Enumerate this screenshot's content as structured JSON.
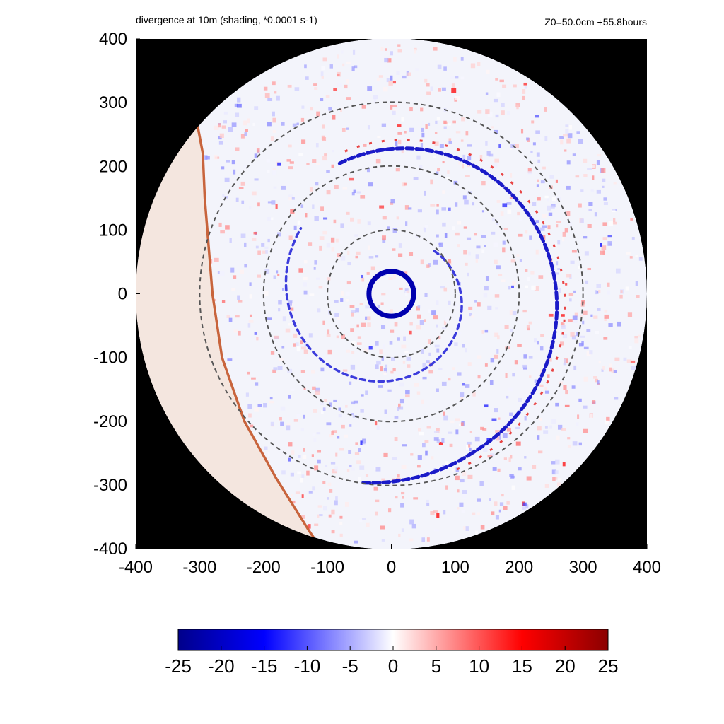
{
  "title_left": "divergence at 10m (shading, *0.0001 s-1)",
  "title_right": "Z0=50.0cm  +55.8hours",
  "chart_data": {
    "type": "heatmap",
    "title": "divergence at 10m (shading, *0.0001 s-1)",
    "annotation": "Z0=50.0cm  +55.8hours",
    "xlabel": "",
    "ylabel": "",
    "xlim": [
      -400,
      400
    ],
    "ylim": [
      -400,
      400
    ],
    "xticks": [
      -400,
      -300,
      -200,
      -100,
      0,
      100,
      200,
      300,
      400
    ],
    "yticks": [
      -400,
      -300,
      -200,
      -100,
      0,
      100,
      200,
      300,
      400
    ],
    "domain_circle": {
      "center": [
        0,
        0
      ],
      "radius": 400
    },
    "background_color": "#000000",
    "dashed_range_rings": [
      100,
      200,
      300
    ],
    "colorbar": {
      "min": -25,
      "max": 25,
      "ticks": [
        -25,
        -20,
        -15,
        -10,
        -5,
        0,
        5,
        10,
        15,
        20,
        25
      ],
      "colors": {
        "-25": "#00008b",
        "-15": "#0000ff",
        "0": "#ffffff",
        "15": "#ff0000",
        "25": "#8b0000"
      }
    },
    "features": [
      {
        "name": "eyewall",
        "center": [
          0,
          0
        ],
        "radius": 35,
        "value": -22
      },
      {
        "name": "inner rainband",
        "value": -12
      },
      {
        "name": "outer rainband",
        "value": -14
      },
      {
        "name": "western boundary",
        "value": 8
      }
    ]
  }
}
